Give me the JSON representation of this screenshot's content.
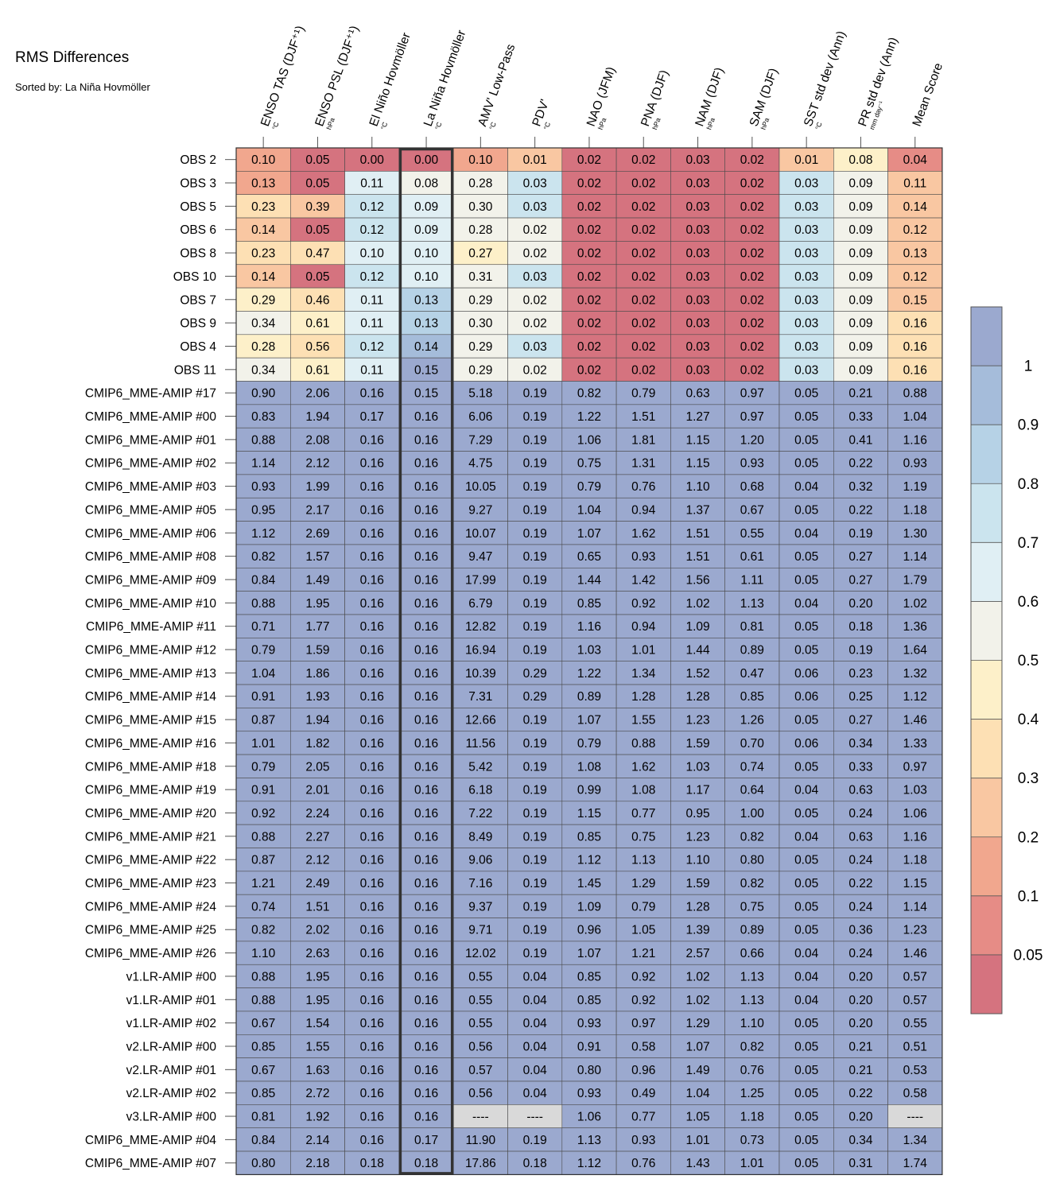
{
  "title": "RMS Differences",
  "subtitle": "Sorted by: La Niña Hovmöller",
  "chart_data": {
    "type": "heatmap",
    "title": "RMS Differences",
    "subtitle": "Sorted by: La Niña Hovmöller",
    "highlighted_column": "La Niña Hovmöller",
    "columns": [
      {
        "name": "ENSO TAS (DJF⁺¹)",
        "unit": "°C"
      },
      {
        "name": "ENSO PSL (DJF⁺¹)",
        "unit": "hPa"
      },
      {
        "name": "El Niño Hovmöller",
        "unit": "°C"
      },
      {
        "name": "La Niña Hovmöller",
        "unit": "°C"
      },
      {
        "name": "AMV' Low-Pass",
        "unit": "°C"
      },
      {
        "name": "PDV'",
        "unit": "°C"
      },
      {
        "name": "NAO (JFM)",
        "unit": "hPa"
      },
      {
        "name": "PNA (DJF)",
        "unit": "hPa"
      },
      {
        "name": "NAM (DJF)",
        "unit": "hPa"
      },
      {
        "name": "SAM (DJF)",
        "unit": "hPa"
      },
      {
        "name": "SST std dev (Ann)",
        "unit": "°C"
      },
      {
        "name": "PR std dev (Ann)",
        "unit": "mm day⁻¹"
      },
      {
        "name": "Mean Score",
        "unit": ""
      }
    ],
    "rows": [
      {
        "name": "OBS 2",
        "values": [
          "0.10",
          "0.05",
          "0.00",
          "0.00",
          "0.10",
          "0.01",
          "0.02",
          "0.02",
          "0.03",
          "0.02",
          "0.01",
          "0.08",
          "0.04"
        ]
      },
      {
        "name": "OBS 3",
        "values": [
          "0.13",
          "0.05",
          "0.11",
          "0.08",
          "0.28",
          "0.03",
          "0.02",
          "0.02",
          "0.03",
          "0.02",
          "0.03",
          "0.09",
          "0.11"
        ]
      },
      {
        "name": "OBS 5",
        "values": [
          "0.23",
          "0.39",
          "0.12",
          "0.09",
          "0.30",
          "0.03",
          "0.02",
          "0.02",
          "0.03",
          "0.02",
          "0.03",
          "0.09",
          "0.14"
        ]
      },
      {
        "name": "OBS 6",
        "values": [
          "0.14",
          "0.05",
          "0.12",
          "0.09",
          "0.28",
          "0.02",
          "0.02",
          "0.02",
          "0.03",
          "0.02",
          "0.03",
          "0.09",
          "0.12"
        ]
      },
      {
        "name": "OBS 8",
        "values": [
          "0.23",
          "0.47",
          "0.10",
          "0.10",
          "0.27",
          "0.02",
          "0.02",
          "0.02",
          "0.03",
          "0.02",
          "0.03",
          "0.09",
          "0.13"
        ]
      },
      {
        "name": "OBS 10",
        "values": [
          "0.14",
          "0.05",
          "0.12",
          "0.10",
          "0.31",
          "0.03",
          "0.02",
          "0.02",
          "0.03",
          "0.02",
          "0.03",
          "0.09",
          "0.12"
        ]
      },
      {
        "name": "OBS 7",
        "values": [
          "0.29",
          "0.46",
          "0.11",
          "0.13",
          "0.29",
          "0.02",
          "0.02",
          "0.02",
          "0.03",
          "0.02",
          "0.03",
          "0.09",
          "0.15"
        ]
      },
      {
        "name": "OBS 9",
        "values": [
          "0.34",
          "0.61",
          "0.11",
          "0.13",
          "0.30",
          "0.02",
          "0.02",
          "0.02",
          "0.03",
          "0.02",
          "0.03",
          "0.09",
          "0.16"
        ]
      },
      {
        "name": "OBS 4",
        "values": [
          "0.28",
          "0.56",
          "0.12",
          "0.14",
          "0.29",
          "0.03",
          "0.02",
          "0.02",
          "0.03",
          "0.02",
          "0.03",
          "0.09",
          "0.16"
        ]
      },
      {
        "name": "OBS 11",
        "values": [
          "0.34",
          "0.61",
          "0.11",
          "0.15",
          "0.29",
          "0.02",
          "0.02",
          "0.02",
          "0.03",
          "0.02",
          "0.03",
          "0.09",
          "0.16"
        ]
      },
      {
        "name": "CMIP6_MME-AMIP  #17",
        "values": [
          "0.90",
          "2.06",
          "0.16",
          "0.15",
          "5.18",
          "0.19",
          "0.82",
          "0.79",
          "0.63",
          "0.97",
          "0.05",
          "0.21",
          "0.88"
        ]
      },
      {
        "name": "CMIP6_MME-AMIP  #00",
        "values": [
          "0.83",
          "1.94",
          "0.17",
          "0.16",
          "6.06",
          "0.19",
          "1.22",
          "1.51",
          "1.27",
          "0.97",
          "0.05",
          "0.33",
          "1.04"
        ]
      },
      {
        "name": "CMIP6_MME-AMIP  #01",
        "values": [
          "0.88",
          "2.08",
          "0.16",
          "0.16",
          "7.29",
          "0.19",
          "1.06",
          "1.81",
          "1.15",
          "1.20",
          "0.05",
          "0.41",
          "1.16"
        ]
      },
      {
        "name": "CMIP6_MME-AMIP  #02",
        "values": [
          "1.14",
          "2.12",
          "0.16",
          "0.16",
          "4.75",
          "0.19",
          "0.75",
          "1.31",
          "1.15",
          "0.93",
          "0.05",
          "0.22",
          "0.93"
        ]
      },
      {
        "name": "CMIP6_MME-AMIP  #03",
        "values": [
          "0.93",
          "1.99",
          "0.16",
          "0.16",
          "10.05",
          "0.19",
          "0.79",
          "0.76",
          "1.10",
          "0.68",
          "0.04",
          "0.32",
          "1.19"
        ]
      },
      {
        "name": "CMIP6_MME-AMIP  #05",
        "values": [
          "0.95",
          "2.17",
          "0.16",
          "0.16",
          "9.27",
          "0.19",
          "1.04",
          "0.94",
          "1.37",
          "0.67",
          "0.05",
          "0.22",
          "1.18"
        ]
      },
      {
        "name": "CMIP6_MME-AMIP  #06",
        "values": [
          "1.12",
          "2.69",
          "0.16",
          "0.16",
          "10.07",
          "0.19",
          "1.07",
          "1.62",
          "1.51",
          "0.55",
          "0.04",
          "0.19",
          "1.30"
        ]
      },
      {
        "name": "CMIP6_MME-AMIP  #08",
        "values": [
          "0.82",
          "1.57",
          "0.16",
          "0.16",
          "9.47",
          "0.19",
          "0.65",
          "0.93",
          "1.51",
          "0.61",
          "0.05",
          "0.27",
          "1.14"
        ]
      },
      {
        "name": "CMIP6_MME-AMIP  #09",
        "values": [
          "0.84",
          "1.49",
          "0.16",
          "0.16",
          "17.99",
          "0.19",
          "1.44",
          "1.42",
          "1.56",
          "1.11",
          "0.05",
          "0.27",
          "1.79"
        ]
      },
      {
        "name": "CMIP6_MME-AMIP  #10",
        "values": [
          "0.88",
          "1.95",
          "0.16",
          "0.16",
          "6.79",
          "0.19",
          "0.85",
          "0.92",
          "1.02",
          "1.13",
          "0.04",
          "0.20",
          "1.02"
        ]
      },
      {
        "name": "CMIP6_MME-AMIP  #11",
        "values": [
          "0.71",
          "1.77",
          "0.16",
          "0.16",
          "12.82",
          "0.19",
          "1.16",
          "0.94",
          "1.09",
          "0.81",
          "0.05",
          "0.18",
          "1.36"
        ]
      },
      {
        "name": "CMIP6_MME-AMIP  #12",
        "values": [
          "0.79",
          "1.59",
          "0.16",
          "0.16",
          "16.94",
          "0.19",
          "1.03",
          "1.01",
          "1.44",
          "0.89",
          "0.05",
          "0.19",
          "1.64"
        ]
      },
      {
        "name": "CMIP6_MME-AMIP  #13",
        "values": [
          "1.04",
          "1.86",
          "0.16",
          "0.16",
          "10.39",
          "0.29",
          "1.22",
          "1.34",
          "1.52",
          "0.47",
          "0.06",
          "0.23",
          "1.32"
        ]
      },
      {
        "name": "CMIP6_MME-AMIP  #14",
        "values": [
          "0.91",
          "1.93",
          "0.16",
          "0.16",
          "7.31",
          "0.29",
          "0.89",
          "1.28",
          "1.28",
          "0.85",
          "0.06",
          "0.25",
          "1.12"
        ]
      },
      {
        "name": "CMIP6_MME-AMIP  #15",
        "values": [
          "0.87",
          "1.94",
          "0.16",
          "0.16",
          "12.66",
          "0.19",
          "1.07",
          "1.55",
          "1.23",
          "1.26",
          "0.05",
          "0.27",
          "1.46"
        ]
      },
      {
        "name": "CMIP6_MME-AMIP  #16",
        "values": [
          "1.01",
          "1.82",
          "0.16",
          "0.16",
          "11.56",
          "0.19",
          "0.79",
          "0.88",
          "1.59",
          "0.70",
          "0.06",
          "0.34",
          "1.33"
        ]
      },
      {
        "name": "CMIP6_MME-AMIP  #18",
        "values": [
          "0.79",
          "2.05",
          "0.16",
          "0.16",
          "5.42",
          "0.19",
          "1.08",
          "1.62",
          "1.03",
          "0.74",
          "0.05",
          "0.33",
          "0.97"
        ]
      },
      {
        "name": "CMIP6_MME-AMIP  #19",
        "values": [
          "0.91",
          "2.01",
          "0.16",
          "0.16",
          "6.18",
          "0.19",
          "0.99",
          "1.08",
          "1.17",
          "0.64",
          "0.04",
          "0.63",
          "1.03"
        ]
      },
      {
        "name": "CMIP6_MME-AMIP  #20",
        "values": [
          "0.92",
          "2.24",
          "0.16",
          "0.16",
          "7.22",
          "0.19",
          "1.15",
          "0.77",
          "0.95",
          "1.00",
          "0.05",
          "0.24",
          "1.06"
        ]
      },
      {
        "name": "CMIP6_MME-AMIP  #21",
        "values": [
          "0.88",
          "2.27",
          "0.16",
          "0.16",
          "8.49",
          "0.19",
          "0.85",
          "0.75",
          "1.23",
          "0.82",
          "0.04",
          "0.63",
          "1.16"
        ]
      },
      {
        "name": "CMIP6_MME-AMIP  #22",
        "values": [
          "0.87",
          "2.12",
          "0.16",
          "0.16",
          "9.06",
          "0.19",
          "1.12",
          "1.13",
          "1.10",
          "0.80",
          "0.05",
          "0.24",
          "1.18"
        ]
      },
      {
        "name": "CMIP6_MME-AMIP  #23",
        "values": [
          "1.21",
          "2.49",
          "0.16",
          "0.16",
          "7.16",
          "0.19",
          "1.45",
          "1.29",
          "1.59",
          "0.82",
          "0.05",
          "0.22",
          "1.15"
        ]
      },
      {
        "name": "CMIP6_MME-AMIP  #24",
        "values": [
          "0.74",
          "1.51",
          "0.16",
          "0.16",
          "9.37",
          "0.19",
          "1.09",
          "0.79",
          "1.28",
          "0.75",
          "0.05",
          "0.24",
          "1.14"
        ]
      },
      {
        "name": "CMIP6_MME-AMIP  #25",
        "values": [
          "0.82",
          "2.02",
          "0.16",
          "0.16",
          "9.71",
          "0.19",
          "0.96",
          "1.05",
          "1.39",
          "0.89",
          "0.05",
          "0.36",
          "1.23"
        ]
      },
      {
        "name": "CMIP6_MME-AMIP  #26",
        "values": [
          "1.10",
          "2.63",
          "0.16",
          "0.16",
          "12.02",
          "0.19",
          "1.07",
          "1.21",
          "2.57",
          "0.66",
          "0.04",
          "0.24",
          "1.46"
        ]
      },
      {
        "name": "v1.LR-AMIP  #00",
        "values": [
          "0.88",
          "1.95",
          "0.16",
          "0.16",
          "0.55",
          "0.04",
          "0.85",
          "0.92",
          "1.02",
          "1.13",
          "0.04",
          "0.20",
          "0.57"
        ]
      },
      {
        "name": "v1.LR-AMIP  #01",
        "values": [
          "0.88",
          "1.95",
          "0.16",
          "0.16",
          "0.55",
          "0.04",
          "0.85",
          "0.92",
          "1.02",
          "1.13",
          "0.04",
          "0.20",
          "0.57"
        ]
      },
      {
        "name": "v1.LR-AMIP  #02",
        "values": [
          "0.67",
          "1.54",
          "0.16",
          "0.16",
          "0.55",
          "0.04",
          "0.93",
          "0.97",
          "1.29",
          "1.10",
          "0.05",
          "0.20",
          "0.55"
        ]
      },
      {
        "name": "v2.LR-AMIP  #00",
        "values": [
          "0.85",
          "1.55",
          "0.16",
          "0.16",
          "0.56",
          "0.04",
          "0.91",
          "0.58",
          "1.07",
          "0.82",
          "0.05",
          "0.21",
          "0.51"
        ]
      },
      {
        "name": "v2.LR-AMIP  #01",
        "values": [
          "0.67",
          "1.63",
          "0.16",
          "0.16",
          "0.57",
          "0.04",
          "0.80",
          "0.96",
          "1.49",
          "0.76",
          "0.05",
          "0.21",
          "0.53"
        ]
      },
      {
        "name": "v2.LR-AMIP  #02",
        "values": [
          "0.85",
          "2.72",
          "0.16",
          "0.16",
          "0.56",
          "0.04",
          "0.93",
          "0.49",
          "1.04",
          "1.25",
          "0.05",
          "0.22",
          "0.58"
        ]
      },
      {
        "name": "v3.LR-AMIP  #00",
        "values": [
          "0.81",
          "1.92",
          "0.16",
          "0.16",
          "----",
          "----",
          "1.06",
          "0.77",
          "1.05",
          "1.18",
          "0.05",
          "0.20",
          "----"
        ]
      },
      {
        "name": "CMIP6_MME-AMIP  #04",
        "values": [
          "0.84",
          "2.14",
          "0.16",
          "0.17",
          "11.90",
          "0.19",
          "1.13",
          "0.93",
          "1.01",
          "0.73",
          "0.05",
          "0.34",
          "1.34"
        ]
      },
      {
        "name": "CMIP6_MME-AMIP  #07",
        "values": [
          "0.80",
          "2.18",
          "0.18",
          "0.18",
          "17.86",
          "0.18",
          "1.12",
          "0.76",
          "1.43",
          "1.01",
          "0.05",
          "0.31",
          "1.74"
        ]
      }
    ],
    "colorbar": {
      "labels": [
        "1",
        "0.9",
        "0.8",
        "0.7",
        "0.6",
        "0.5",
        "0.4",
        "0.3",
        "0.2",
        "0.1",
        "0.05"
      ],
      "colors_top_to_bottom": [
        "#9ba9cf",
        "#a5bcda",
        "#b6d2e6",
        "#cbe4ee",
        "#e0eff4",
        "#f2f2ea",
        "#fdf0c9",
        "#fde0b4",
        "#f9c7a2",
        "#f1a78e",
        "#e68c86",
        "#d5737f"
      ],
      "missing_color": "#d9d9d9"
    }
  }
}
